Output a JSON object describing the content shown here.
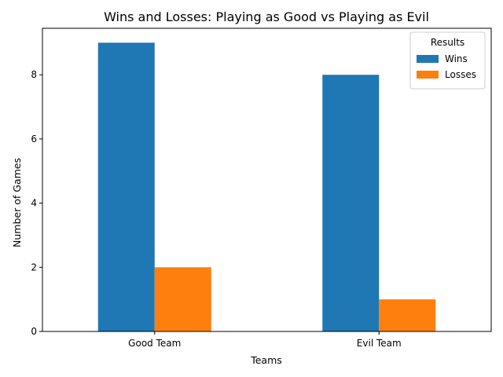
{
  "chart_data": {
    "type": "bar",
    "title": "Wins and Losses: Playing as Good vs Playing as Evil",
    "xlabel": "Teams",
    "ylabel": "Number of Games",
    "categories": [
      "Good Team",
      "Evil Team"
    ],
    "series": [
      {
        "name": "Wins",
        "values": [
          9,
          8
        ],
        "color": "#1f77b4"
      },
      {
        "name": "Losses",
        "values": [
          2,
          1
        ],
        "color": "#ff7f0e"
      }
    ],
    "ylim": [
      0,
      9.45
    ],
    "yticks": [
      "0",
      "2",
      "4",
      "6",
      "8"
    ],
    "legend": {
      "title": "Results",
      "position": "top-right"
    },
    "grid": false
  }
}
